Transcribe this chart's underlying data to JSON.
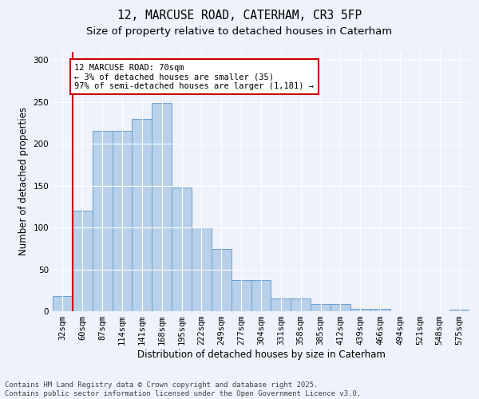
{
  "title1": "12, MARCUSE ROAD, CATERHAM, CR3 5FP",
  "title2": "Size of property relative to detached houses in Caterham",
  "xlabel": "Distribution of detached houses by size in Caterham",
  "ylabel": "Number of detached properties",
  "categories": [
    "32sqm",
    "60sqm",
    "87sqm",
    "114sqm",
    "141sqm",
    "168sqm",
    "195sqm",
    "222sqm",
    "249sqm",
    "277sqm",
    "304sqm",
    "331sqm",
    "358sqm",
    "385sqm",
    "412sqm",
    "439sqm",
    "466sqm",
    "494sqm",
    "521sqm",
    "548sqm",
    "575sqm"
  ],
  "values": [
    18,
    120,
    216,
    216,
    230,
    249,
    148,
    100,
    74,
    37,
    37,
    15,
    15,
    9,
    9,
    3,
    3,
    0,
    0,
    0,
    2
  ],
  "bar_color": "#b8d0ea",
  "bar_edge_color": "#6aa0cc",
  "background_color": "#eef2fa",
  "grid_color": "#ffffff",
  "vline_x": 0.5,
  "vline_color": "#cc0000",
  "annotation_text": "12 MARCUSE ROAD: 70sqm\n← 3% of detached houses are smaller (35)\n97% of semi-detached houses are larger (1,181) →",
  "annotation_box_color": "white",
  "annotation_box_edge": "#cc0000",
  "ylim": [
    0,
    310
  ],
  "yticks": [
    0,
    50,
    100,
    150,
    200,
    250,
    300
  ],
  "footer": "Contains HM Land Registry data © Crown copyright and database right 2025.\nContains public sector information licensed under the Open Government Licence v3.0.",
  "title1_fontsize": 10.5,
  "title2_fontsize": 9.5,
  "xlabel_fontsize": 8.5,
  "ylabel_fontsize": 8.5,
  "tick_fontsize": 7.5,
  "annotation_fontsize": 7.5,
  "footer_fontsize": 6.5
}
